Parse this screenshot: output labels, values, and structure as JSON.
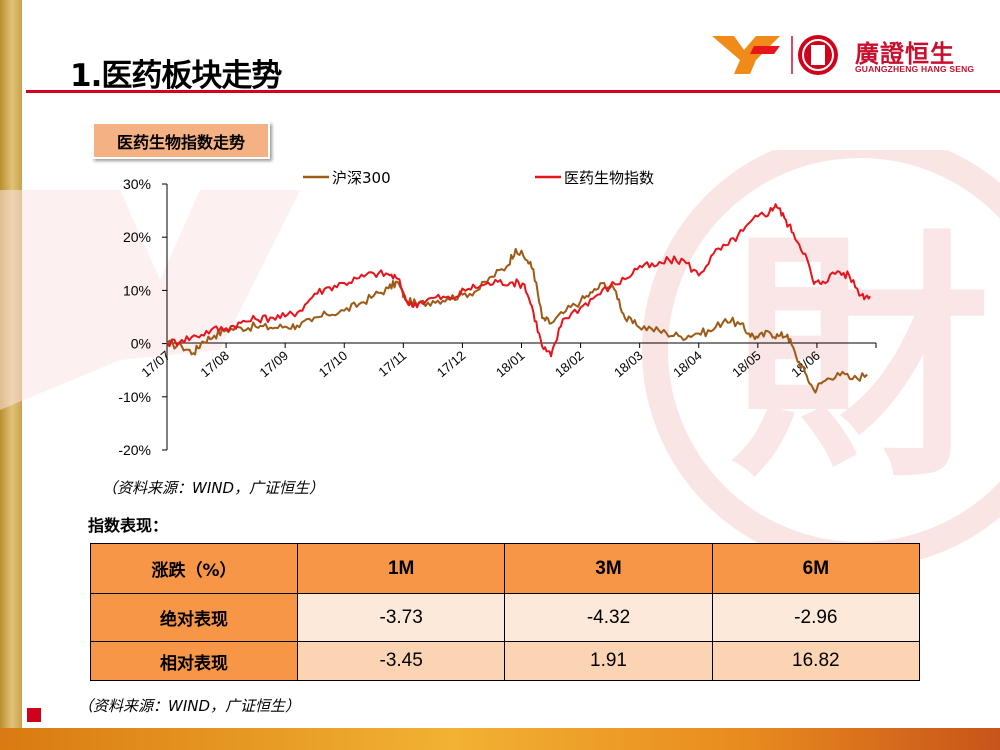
{
  "page": {
    "title": "1.医药板块走势",
    "logo_cn": "廣證恒生",
    "logo_en": "GUANGZHENG HANG SENG",
    "watermark_cn": "財"
  },
  "chart_section": {
    "tag": "医药生物指数走势",
    "source": "（资料来源：WIND，广证恒生）"
  },
  "chart_data": {
    "type": "line",
    "title": "",
    "xlabel": "",
    "ylabel": "",
    "ylim": [
      -20,
      30
    ],
    "ytick_labels": [
      "30%",
      "20%",
      "10%",
      "0%",
      "-10%",
      "-20%"
    ],
    "ytick_values": [
      30,
      20,
      10,
      0,
      -10,
      -20
    ],
    "x_categories": [
      "17/07",
      "17/08",
      "17/09",
      "17/10",
      "17/11",
      "17/12",
      "18/01",
      "18/02",
      "18/03",
      "18/04",
      "18/05",
      "18/06"
    ],
    "legend_position": "top",
    "series": [
      {
        "name": "沪深300",
        "color": "#9c5a14",
        "values": [
          [
            0,
            0
          ],
          [
            0.25,
            -0.5
          ],
          [
            0.45,
            -1.8
          ],
          [
            0.6,
            0.4
          ],
          [
            0.8,
            1.5
          ],
          [
            1.0,
            2.6
          ],
          [
            1.25,
            3.0
          ],
          [
            1.5,
            3.2
          ],
          [
            1.75,
            3.0
          ],
          [
            2.0,
            3.2
          ],
          [
            2.2,
            3.4
          ],
          [
            2.45,
            4.2
          ],
          [
            2.7,
            5.5
          ],
          [
            3.0,
            6.2
          ],
          [
            3.25,
            7.4
          ],
          [
            3.5,
            9.0
          ],
          [
            3.75,
            10.4
          ],
          [
            3.9,
            11.6
          ],
          [
            4.05,
            8.0
          ],
          [
            4.25,
            7.4
          ],
          [
            4.5,
            8.0
          ],
          [
            4.75,
            8.5
          ],
          [
            5.0,
            9.2
          ],
          [
            5.25,
            10.0
          ],
          [
            5.5,
            12.6
          ],
          [
            5.75,
            14.5
          ],
          [
            5.9,
            17.8
          ],
          [
            6.1,
            15.6
          ],
          [
            6.2,
            14.0
          ],
          [
            6.35,
            4.8
          ],
          [
            6.5,
            3.8
          ],
          [
            6.75,
            6.1
          ],
          [
            7.0,
            8.0
          ],
          [
            7.2,
            9.6
          ],
          [
            7.4,
            11.4
          ],
          [
            7.6,
            9.8
          ],
          [
            7.75,
            4.8
          ],
          [
            7.95,
            3.4
          ],
          [
            8.2,
            2.8
          ],
          [
            8.45,
            2.0
          ],
          [
            8.7,
            1.3
          ],
          [
            8.95,
            1.9
          ],
          [
            9.2,
            2.3
          ],
          [
            9.45,
            4.6
          ],
          [
            9.7,
            3.6
          ],
          [
            9.85,
            1.9
          ],
          [
            10.0,
            1.1
          ],
          [
            10.2,
            2.1
          ],
          [
            10.35,
            1.4
          ],
          [
            10.5,
            1.7
          ],
          [
            10.65,
            -2.5
          ],
          [
            10.8,
            -5.5
          ],
          [
            10.95,
            -8.8
          ],
          [
            11.1,
            -7.2
          ],
          [
            11.35,
            -5.5
          ],
          [
            11.6,
            -6.7
          ],
          [
            11.85,
            -5.8
          ]
        ]
      },
      {
        "name": "医药生物指数",
        "color": "#e8141c",
        "values": [
          [
            0,
            0
          ],
          [
            0.25,
            0.7
          ],
          [
            0.5,
            1.4
          ],
          [
            0.75,
            2.6
          ],
          [
            1.0,
            2.9
          ],
          [
            1.25,
            3.9
          ],
          [
            1.5,
            4.6
          ],
          [
            1.75,
            4.9
          ],
          [
            2.0,
            5.1
          ],
          [
            2.25,
            6.2
          ],
          [
            2.5,
            9.4
          ],
          [
            2.75,
            10.6
          ],
          [
            3.0,
            11.4
          ],
          [
            3.25,
            12.3
          ],
          [
            3.5,
            13.2
          ],
          [
            3.75,
            13.0
          ],
          [
            3.9,
            12.2
          ],
          [
            4.1,
            7.2
          ],
          [
            4.3,
            7.8
          ],
          [
            4.55,
            8.7
          ],
          [
            4.8,
            8.4
          ],
          [
            5.1,
            10.3
          ],
          [
            5.35,
            11.0
          ],
          [
            5.6,
            11.6
          ],
          [
            5.85,
            11.5
          ],
          [
            6.05,
            11.1
          ],
          [
            6.2,
            6.0
          ],
          [
            6.35,
            -0.6
          ],
          [
            6.5,
            -2.4
          ],
          [
            6.7,
            4.6
          ],
          [
            7.0,
            6.8
          ],
          [
            7.25,
            8.9
          ],
          [
            7.5,
            10.8
          ],
          [
            7.75,
            12.1
          ],
          [
            8.0,
            14.6
          ],
          [
            8.25,
            14.5
          ],
          [
            8.5,
            15.7
          ],
          [
            8.75,
            15.6
          ],
          [
            9.0,
            12.8
          ],
          [
            9.25,
            16.9
          ],
          [
            9.5,
            18.6
          ],
          [
            9.75,
            21.2
          ],
          [
            10.0,
            23.9
          ],
          [
            10.2,
            24.8
          ],
          [
            10.3,
            26.2
          ],
          [
            10.45,
            23.6
          ],
          [
            10.6,
            20.8
          ],
          [
            10.8,
            16.9
          ],
          [
            10.95,
            11.2
          ],
          [
            11.1,
            11.7
          ],
          [
            11.35,
            13.6
          ],
          [
            11.55,
            12.7
          ],
          [
            11.75,
            9.1
          ],
          [
            11.9,
            8.9
          ]
        ]
      }
    ]
  },
  "performance": {
    "label": "指数表现：",
    "headers": [
      "涨跌（%）",
      "1M",
      "3M",
      "6M"
    ],
    "rows": [
      {
        "label": "绝对表现",
        "values": [
          "-3.73",
          "-4.32",
          "-2.96"
        ]
      },
      {
        "label": "相对表现",
        "values": [
          "-3.45",
          "1.91",
          "16.82"
        ]
      }
    ],
    "source": "（资料来源：WIND，广证恒生）"
  }
}
